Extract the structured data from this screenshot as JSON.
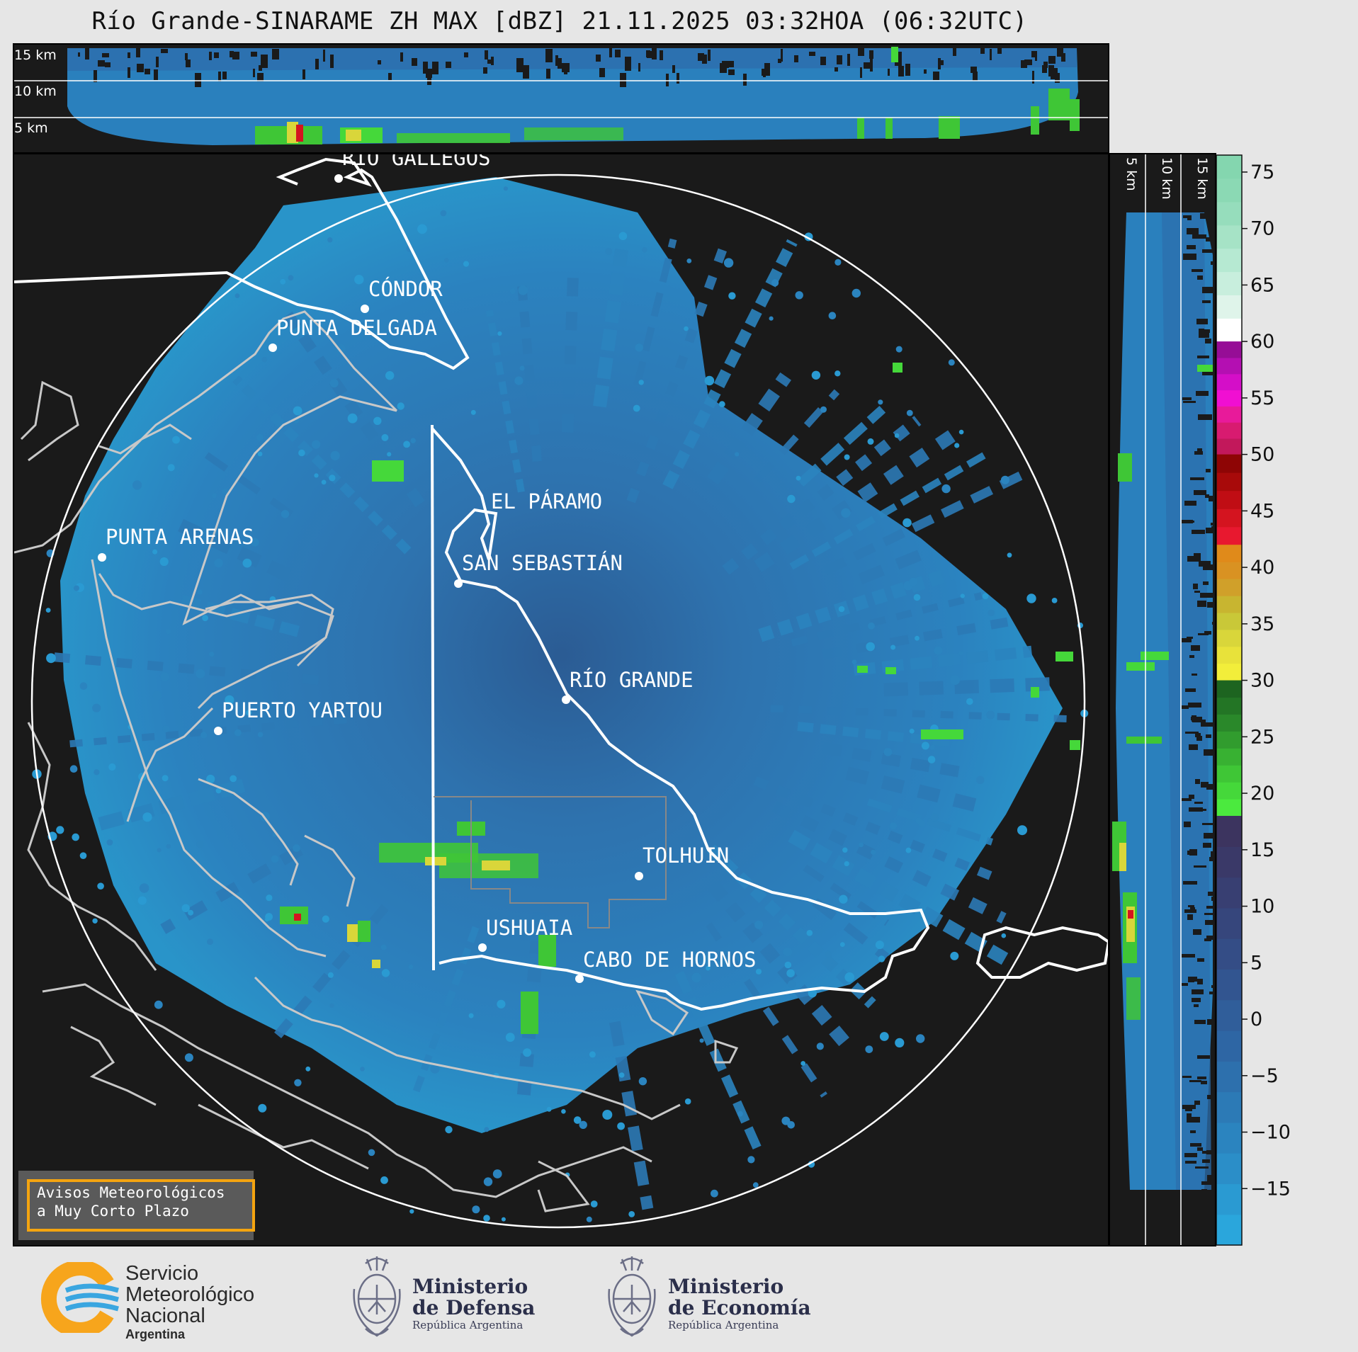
{
  "header": {
    "title": "Río Grande-SINARAME ZH MAX [dBZ] 21.11.2025 03:32HOA (06:32UTC)"
  },
  "height_panel_top": {
    "labels": [
      "15 km",
      "10 km",
      "5 km"
    ]
  },
  "height_panel_right": {
    "labels": [
      "5 km",
      "10 km",
      "15 km"
    ]
  },
  "cities": [
    {
      "name": "RÍO GALLEGOS",
      "id": "rio-gallegos"
    },
    {
      "name": "CÓNDOR",
      "id": "condor"
    },
    {
      "name": "PUNTA DELGADA",
      "id": "punta-delgada"
    },
    {
      "name": "EL PÁRAMO",
      "id": "el-paramo"
    },
    {
      "name": "PUNTA ARENAS",
      "id": "punta-arenas"
    },
    {
      "name": "SAN SEBASTIÁN",
      "id": "san-sebastian"
    },
    {
      "name": "RÍO GRANDE",
      "id": "rio-grande"
    },
    {
      "name": "PUERTO YARTOU",
      "id": "puerto-yartou"
    },
    {
      "name": "TOLHUIN",
      "id": "tolhuin"
    },
    {
      "name": "USHUAIA",
      "id": "ushuaia"
    },
    {
      "name": "CABO DE HORNOS",
      "id": "cabo-de-hornos"
    }
  ],
  "colorbar": {
    "unit": "dBZ",
    "ticks": [
      "75",
      "70",
      "65",
      "60",
      "55",
      "50",
      "45",
      "40",
      "35",
      "30",
      "25",
      "20",
      "15",
      "10",
      "5",
      "0",
      "−5",
      "−10",
      "−15"
    ],
    "min": -20,
    "max": 76.5,
    "bands": [
      {
        "from": 60,
        "to": 76.5,
        "colors": [
          "#ffffff",
          "#dff4ea",
          "#c8eedd",
          "#b6e9d2",
          "#a6e3c6",
          "#96ddbc",
          "#8bd9b4",
          "#84d6af"
        ]
      },
      {
        "from": 50,
        "to": 60,
        "colors": [
          "#c2185b",
          "#d81b70",
          "#e81a9a",
          "#f00fd2",
          "#d40ec8",
          "#b40fb2",
          "#960d96"
        ]
      },
      {
        "from": 42,
        "to": 50,
        "colors": [
          "#e8182f",
          "#d4141f",
          "#c00d14",
          "#a80a0a",
          "#8e0505"
        ]
      },
      {
        "from": 30,
        "to": 42,
        "colors": [
          "#f2ee3a",
          "#e8e23a",
          "#d9d63a",
          "#c9c838",
          "#c8b530",
          "#d0a02a",
          "#d99222",
          "#e08a1a"
        ]
      },
      {
        "from": 18,
        "to": 30,
        "colors": [
          "#4bea3e",
          "#45d83a",
          "#3fc636",
          "#38b132",
          "#319c2e",
          "#2a882a",
          "#237525",
          "#1d6420"
        ]
      },
      {
        "from": -20,
        "to": 18,
        "colors": [
          "#2aa6dc",
          "#2a9ad2",
          "#2b8ec8",
          "#2b84bf",
          "#2c7ab6",
          "#2d70ad",
          "#2e66a4",
          "#305e9a",
          "#325590",
          "#344d86",
          "#36467c",
          "#383f72",
          "#3a3968",
          "#3c345f"
        ]
      }
    ]
  },
  "notice": {
    "line1": "Avisos Meteorológicos",
    "line2": "a Muy Corto Plazo",
    "accent": "#f4a410"
  },
  "logos": {
    "smn": {
      "line1": "Servicio",
      "line2": "Meteorológico",
      "line3": "Nacional",
      "country": "Argentina"
    },
    "defensa": {
      "line1": "Ministerio",
      "line2": "de Defensa",
      "sub": "República Argentina"
    },
    "economia": {
      "line1": "Ministerio",
      "line2": "de Economía",
      "sub": "República Argentina"
    }
  },
  "colors": {
    "background": "#e6e6e6",
    "panel": "#1a1a1a",
    "echo": "#2f7fc0",
    "coast": "#c8c8c8",
    "border": "#ffffff"
  }
}
